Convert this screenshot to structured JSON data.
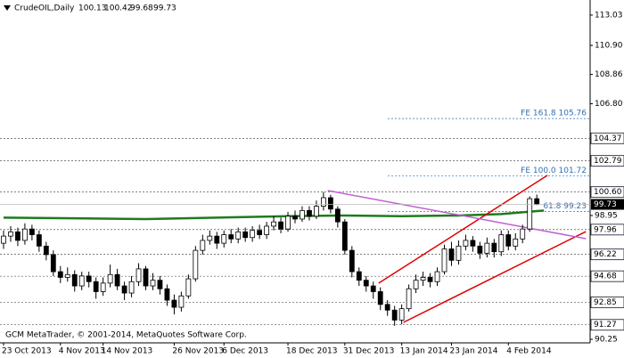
{
  "chart_data": {
    "type": "candlestick",
    "symbol": "CrudeOIL,Daily",
    "footer": "GCM MetaTrader, © 2001-2014, MetaQuotes Software Corp.",
    "xlim": [
      -0.5,
      82.5
    ],
    "ylim": [
      90.0,
      114.09
    ],
    "xticks": [
      {
        "value": 0,
        "label": "23 Oct 2013"
      },
      {
        "value": 8,
        "label": "4 Nov 2013"
      },
      {
        "value": 14,
        "label": "14 Nov 2013"
      },
      {
        "value": 24,
        "label": "26 Nov 2013"
      },
      {
        "value": 31,
        "label": "6 Dec 2013"
      },
      {
        "value": 40,
        "label": "18 Dec 2013"
      },
      {
        "value": 48,
        "label": "31 Dec 2013"
      },
      {
        "value": 56,
        "label": "13 Jan 2014"
      },
      {
        "value": 63,
        "label": "23 Jan 2014"
      },
      {
        "value": 71,
        "label": "4 Feb 2014"
      }
    ],
    "yticks": [
      113.03,
      {
        "value": 110.9,
        "label": "110.90"
      },
      108.86,
      {
        "value": 106.8,
        "label": "106.80"
      },
      98.95,
      90.25
    ],
    "hlines": [
      104.37,
      102.79,
      {
        "value": 100.6,
        "label": "100.60"
      },
      97.96,
      96.22,
      94.68,
      92.85,
      91.27
    ],
    "current_price": 99.73,
    "fib_levels": [
      {
        "value": 105.76,
        "label": "FE 161.8 105.76"
      },
      {
        "value": 101.72,
        "label": "FE 100.0 101.72"
      },
      {
        "value": 99.23,
        "label": "61.8 99.23"
      }
    ],
    "up_color": "#ffffff",
    "down_color": "#000000",
    "open": [
      97.0,
      97.5,
      97.8,
      97.2,
      98.0,
      97.6,
      96.8,
      96.2,
      95.0,
      94.6,
      94.8,
      94.0,
      94.7,
      94.3,
      93.6,
      94.2,
      94.8,
      94.0,
      93.5,
      94.3,
      95.2,
      94.0,
      94.4,
      93.8,
      93.0,
      92.5,
      93.3,
      94.5,
      96.5,
      97.2,
      97.5,
      97.0,
      97.6,
      97.3,
      97.8,
      97.4,
      97.9,
      97.6,
      98.2,
      98.5,
      98.0,
      98.9,
      98.7,
      99.3,
      98.9,
      99.6,
      100.2,
      99.4,
      98.5,
      96.5,
      95.0,
      94.4,
      94.0,
      93.6,
      92.7,
      92.3,
      91.6,
      92.4,
      93.8,
      94.4,
      94.6,
      94.3,
      95.0,
      96.6,
      95.8,
      96.8,
      97.2,
      96.8,
      96.3,
      97.0,
      96.4,
      97.6,
      96.8,
      97.3,
      98.0,
      100.13
    ],
    "high": [
      97.9,
      98.2,
      98.1,
      98.4,
      98.3,
      97.9,
      97.1,
      96.5,
      95.4,
      95.3,
      95.1,
      95.0,
      95.0,
      94.6,
      94.6,
      95.5,
      95.2,
      94.3,
      94.7,
      95.6,
      95.4,
      94.9,
      94.7,
      94.1,
      93.4,
      93.6,
      94.8,
      96.8,
      97.6,
      97.9,
      97.8,
      97.9,
      98.0,
      98.1,
      98.1,
      98.2,
      98.3,
      98.5,
      98.9,
      98.8,
      99.2,
      99.3,
      99.6,
      99.6,
      100.0,
      100.6,
      100.4,
      99.6,
      98.7,
      96.8,
      95.3,
      94.7,
      94.3,
      93.9,
      93.0,
      92.6,
      92.7,
      94.1,
      94.8,
      95.0,
      94.9,
      95.3,
      96.9,
      97.1,
      97.2,
      97.6,
      97.5,
      97.1,
      97.4,
      97.3,
      97.9,
      97.9,
      97.7,
      98.3,
      100.3,
      100.42
    ],
    "low": [
      96.6,
      97.1,
      96.8,
      96.9,
      97.2,
      96.4,
      95.8,
      94.7,
      94.2,
      94.3,
      93.6,
      93.7,
      93.9,
      93.1,
      93.3,
      93.9,
      93.7,
      93.0,
      93.2,
      94.0,
      93.7,
      93.7,
      93.4,
      92.6,
      92.0,
      92.2,
      93.1,
      94.3,
      96.2,
      96.9,
      96.6,
      96.7,
      97.0,
      97.0,
      97.1,
      97.1,
      97.3,
      97.3,
      97.9,
      97.7,
      97.8,
      98.4,
      98.5,
      98.6,
      98.7,
      99.3,
      99.1,
      98.1,
      96.2,
      94.6,
      94.0,
      93.6,
      93.1,
      92.3,
      91.9,
      91.2,
      91.3,
      92.2,
      93.5,
      94.0,
      93.9,
      94.0,
      94.8,
      95.4,
      95.5,
      96.5,
      96.4,
      95.9,
      96.0,
      96.0,
      96.1,
      96.5,
      96.5,
      97.0,
      97.8,
      99.68
    ],
    "close": [
      97.5,
      97.8,
      97.2,
      98.0,
      97.6,
      96.8,
      96.2,
      95.0,
      94.6,
      94.8,
      94.0,
      94.7,
      94.3,
      93.6,
      94.2,
      94.8,
      94.0,
      93.5,
      94.3,
      95.2,
      94.0,
      94.4,
      93.8,
      93.0,
      92.5,
      93.3,
      94.5,
      96.5,
      97.2,
      97.5,
      97.0,
      97.6,
      97.3,
      97.8,
      97.4,
      97.9,
      97.6,
      98.2,
      98.5,
      98.0,
      98.9,
      98.7,
      99.3,
      98.9,
      99.6,
      100.2,
      99.4,
      98.5,
      96.5,
      95.0,
      94.4,
      94.0,
      93.6,
      92.7,
      92.3,
      91.6,
      92.4,
      93.8,
      94.4,
      94.6,
      94.3,
      95.0,
      96.6,
      95.8,
      96.8,
      97.2,
      96.8,
      96.3,
      97.0,
      96.4,
      97.6,
      96.8,
      97.3,
      98.0,
      100.13,
      99.73
    ],
    "moving_average": {
      "color": "#1f7a1f",
      "x": [
        0,
        10,
        20,
        30,
        40,
        48,
        56,
        64,
        70,
        76
      ],
      "values": [
        98.8,
        98.75,
        98.7,
        98.8,
        98.9,
        98.95,
        98.9,
        98.95,
        99.05,
        99.3
      ]
    },
    "trendlines": [
      {
        "color": "#e00000",
        "x": [
          52.75,
          76.5
        ],
        "values": [
          94.19,
          101.77
        ]
      },
      {
        "color": "#e00000",
        "x": [
          56.25,
          81.9
        ],
        "values": [
          91.44,
          97.82
        ]
      },
      {
        "color": "#c060d0",
        "x": [
          45.6,
          81.9
        ],
        "values": [
          100.7,
          97.32
        ]
      }
    ]
  }
}
